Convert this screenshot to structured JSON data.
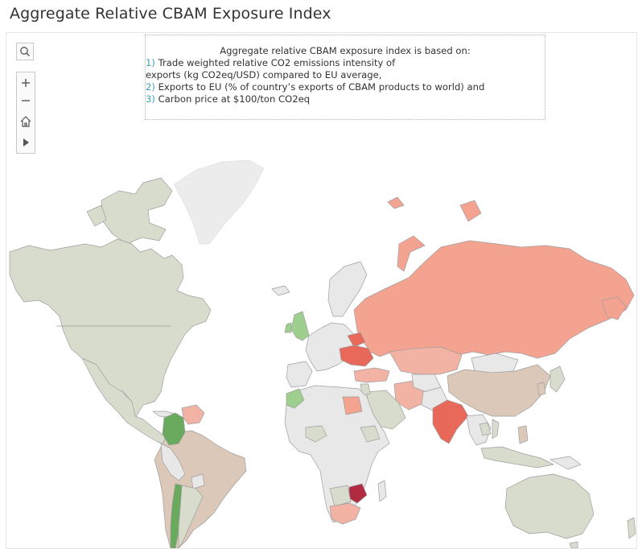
{
  "title": "Aggregate Relative CBAM Exposure Index",
  "note": {
    "heading": "Aggregate relative CBAM exposure index is based on:",
    "items": [
      {
        "num": "1)",
        "text": "Trade weighted relative CO2 emissions intensity of",
        "cont": "exports (kg CO2eq/USD) compared to EU average,"
      },
      {
        "num": "2)",
        "text": "Exports to EU (% of country’s exports of CBAM products to world) and"
      },
      {
        "num": "3)",
        "text": "Carbon price at $100/ton CO2eq"
      }
    ],
    "number_color": "#3aa0b5"
  },
  "map_controls": [
    {
      "name": "search-icon"
    },
    {
      "name": "zoom-in-icon",
      "label": "+"
    },
    {
      "name": "zoom-out-icon",
      "label": "−"
    },
    {
      "name": "home-icon"
    },
    {
      "name": "play-icon"
    }
  ],
  "colors": {
    "no_data": "#e8e8e8",
    "neutral": "#d8dccc",
    "low_green": "#9fcf8f",
    "green": "#6aaa5e",
    "tan": "#dcc8b8",
    "light_red": "#f2b3a4",
    "salmon": "#f5a391",
    "red": "#e8685a",
    "dark_red": "#b02b40",
    "greenland": "#ececec",
    "border": "#9e9e9e"
  }
}
